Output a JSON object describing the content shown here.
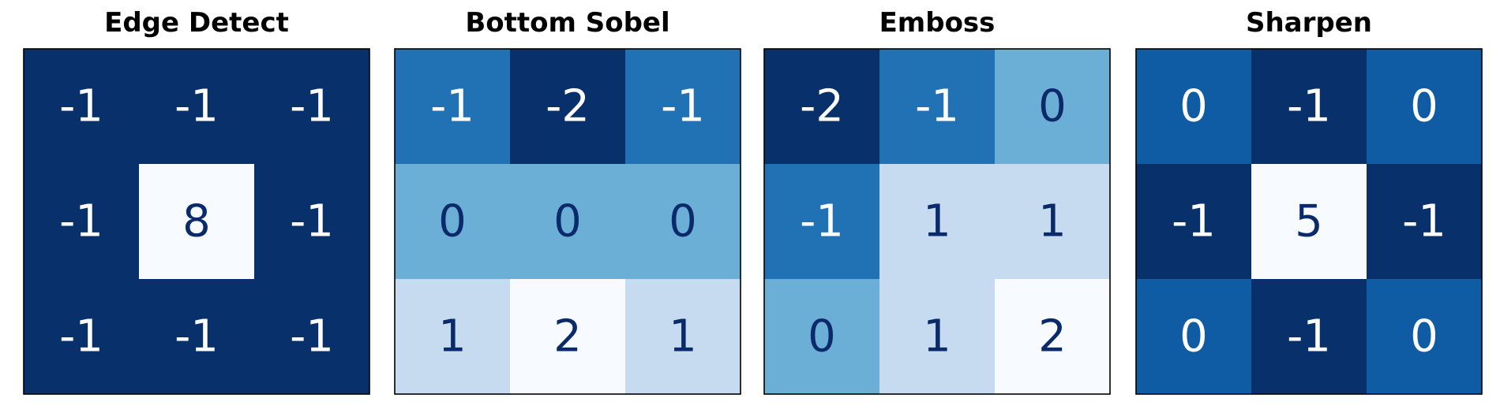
{
  "chart_data": [
    {
      "type": "heatmap",
      "title": "Edge Detect",
      "colormap": "Blues",
      "grid": false,
      "values": [
        [
          -1,
          -1,
          -1
        ],
        [
          -1,
          8,
          -1
        ],
        [
          -1,
          -1,
          -1
        ]
      ]
    },
    {
      "type": "heatmap",
      "title": "Bottom Sobel",
      "colormap": "Blues",
      "grid": false,
      "values": [
        [
          -1,
          -2,
          -1
        ],
        [
          0,
          0,
          0
        ],
        [
          1,
          2,
          1
        ]
      ]
    },
    {
      "type": "heatmap",
      "title": "Emboss",
      "colormap": "Blues",
      "grid": false,
      "values": [
        [
          -2,
          -1,
          0
        ],
        [
          -1,
          1,
          1
        ],
        [
          0,
          1,
          2
        ]
      ]
    },
    {
      "type": "heatmap",
      "title": "Sharpen",
      "colormap": "Blues",
      "grid": false,
      "values": [
        [
          0,
          -1,
          0
        ],
        [
          -1,
          5,
          -1
        ],
        [
          0,
          -1,
          0
        ]
      ]
    }
  ]
}
